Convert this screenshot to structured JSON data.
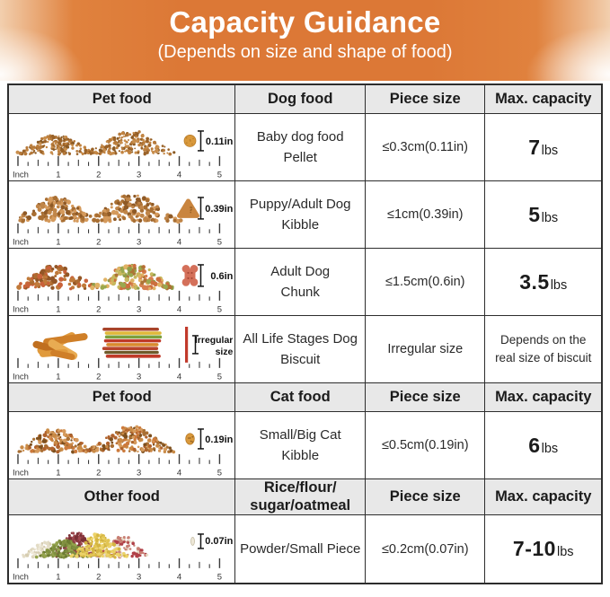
{
  "banner": {
    "title": "Capacity Guidance",
    "subtitle": "(Depends on size and shape of food)",
    "bg_color": "#dc7836",
    "text_color": "#ffffff"
  },
  "ruler": {
    "unit_label": "Inch",
    "ticks": [
      "1",
      "2",
      "3",
      "4",
      "5"
    ]
  },
  "table": {
    "border_color": "#2d2d2d",
    "header_bg": "#e8e8e8",
    "sections": [
      {
        "header": {
          "pet": "Pet food",
          "food_lines": [
            "Dog food"
          ],
          "size": "Piece size",
          "capacity": "Max. capacity"
        },
        "rows": [
          {
            "food_lines": [
              "Baby dog food",
              "Pellet"
            ],
            "piece_size": "≤0.3cm(0.11in)",
            "capacity_value": "7",
            "capacity_unit": "lbs",
            "measure_label": "0.11in",
            "visual": "baby-dog-pellets"
          },
          {
            "food_lines": [
              "Puppy/Adult Dog",
              "Kibble"
            ],
            "piece_size": "≤1cm(0.39in)",
            "capacity_value": "5",
            "capacity_unit": "lbs",
            "measure_label": "0.39in",
            "visual": "dog-kibble"
          },
          {
            "food_lines": [
              "Adult Dog",
              "Chunk"
            ],
            "piece_size": "≤1.5cm(0.6in)",
            "capacity_value": "3.5",
            "capacity_unit": "lbs",
            "measure_label": "0.6in",
            "visual": "dog-chunks"
          },
          {
            "food_lines": [
              "All Life Stages Dog",
              "Biscuit"
            ],
            "piece_size": "Irregular size",
            "capacity_lines": [
              "Depends on the",
              "real size of biscuit"
            ],
            "measure_label_lines": [
              "Irregular",
              "size"
            ],
            "visual": "dog-biscuits"
          }
        ]
      },
      {
        "header": {
          "pet": "Pet food",
          "food_lines": [
            "Cat food"
          ],
          "size": "Piece size",
          "capacity": "Max. capacity"
        },
        "rows": [
          {
            "food_lines": [
              "Small/Big Cat",
              "Kibble"
            ],
            "piece_size": "≤0.5cm(0.19in)",
            "capacity_value": "6",
            "capacity_unit": "lbs",
            "measure_label": "0.19in",
            "visual": "cat-kibble"
          }
        ]
      },
      {
        "header": {
          "pet": "Other food",
          "food_lines": [
            "Rice/flour/",
            "sugar/oatmeal"
          ],
          "size": "Piece size",
          "capacity": "Max. capacity"
        },
        "rows": [
          {
            "food_lines": [
              "Powder/Small Piece"
            ],
            "piece_size": "≤0.2cm(0.07in)",
            "capacity_value": "7-10",
            "capacity_unit": "lbs",
            "measure_label": "0.07in",
            "visual": "grains-powder"
          }
        ]
      }
    ]
  }
}
